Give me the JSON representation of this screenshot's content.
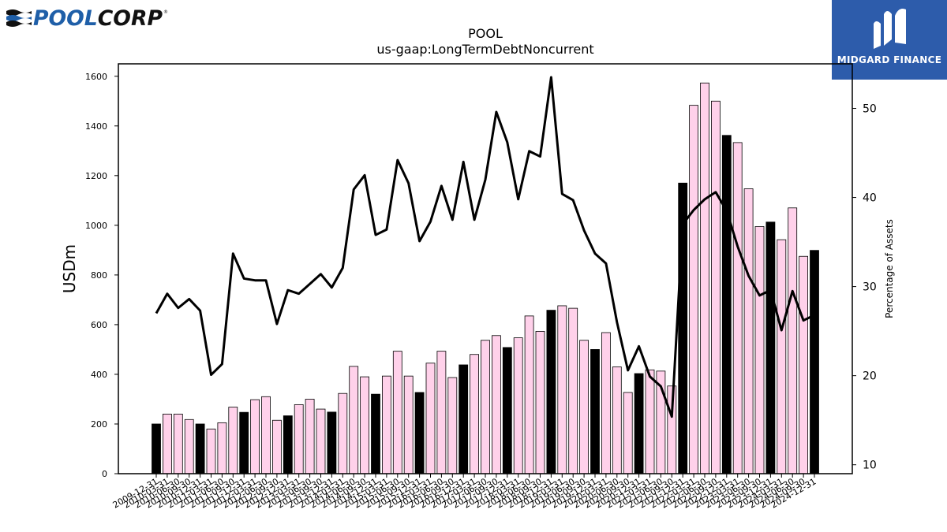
{
  "brand": {
    "left_logo": "POOLCORP",
    "right_logo": "MIDGARD FINANCE",
    "colors": {
      "poolcorp_blue": "#1f5fa8",
      "midgard_bg": "#2d5cab"
    }
  },
  "chart_data": {
    "type": "bar",
    "title": "POOL",
    "subtitle": "us-gaap:LongTermDebtNoncurrent",
    "ylabel": "USDm",
    "ylabel_right": "Percentage of Assets",
    "ylim": [
      0,
      1650
    ],
    "ylim_right": [
      9,
      55
    ],
    "yticks": [
      0,
      200,
      400,
      600,
      800,
      1000,
      1200,
      1400,
      1600
    ],
    "yticks_right": [
      10,
      20,
      30,
      40,
      50
    ],
    "grid": false,
    "categories": [
      "2009-12-31",
      "2010-03-31",
      "2010-06-30",
      "2010-09-30",
      "2010-12-31",
      "2011-03-31",
      "2011-06-30",
      "2011-09-30",
      "2011-12-31",
      "2012-03-31",
      "2012-06-30",
      "2012-09-30",
      "2012-12-31",
      "2013-03-31",
      "2013-06-30",
      "2013-09-30",
      "2013-12-31",
      "2014-03-31",
      "2014-06-30",
      "2014-09-30",
      "2014-12-31",
      "2015-03-31",
      "2015-06-30",
      "2015-09-30",
      "2015-12-31",
      "2016-03-31",
      "2016-06-30",
      "2016-09-30",
      "2016-12-31",
      "2017-03-31",
      "2017-06-30",
      "2017-09-30",
      "2017-12-31",
      "2018-03-31",
      "2018-06-30",
      "2018-09-30",
      "2018-12-31",
      "2019-03-31",
      "2019-06-30",
      "2019-09-30",
      "2019-12-31",
      "2020-03-31",
      "2020-06-30",
      "2020-09-30",
      "2020-12-31",
      "2021-03-31",
      "2021-06-30",
      "2021-09-30",
      "2021-12-31",
      "2022-03-31",
      "2022-06-30",
      "2022-09-30",
      "2022-12-31",
      "2023-03-31",
      "2023-06-30",
      "2023-09-30",
      "2023-12-31",
      "2024-03-31",
      "2024-06-30",
      "2024-09-30",
      "2024-12-31"
    ],
    "series": [
      {
        "type": "bar",
        "values": [
          200,
          240,
          240,
          218,
          200,
          180,
          205,
          268,
          247,
          298,
          310,
          215,
          233,
          278,
          300,
          260,
          248,
          323,
          432,
          390,
          320,
          393,
          493,
          393,
          327,
          445,
          493,
          387,
          438,
          480,
          537,
          556,
          508,
          547,
          635,
          573,
          658,
          676,
          666,
          537,
          500,
          568,
          430,
          327,
          403,
          418,
          413,
          353,
          1170,
          1483,
          1573,
          1500,
          1362,
          1333,
          1147,
          995,
          1013,
          942,
          1070,
          875,
          899
        ],
        "colors": {
          "year_end": "#000000",
          "quarter": "#ffd1ea"
        }
      },
      {
        "type": "line",
        "axis": "right",
        "color": "#000000",
        "values": [
          27,
          29.2,
          27.6,
          28.6,
          27.3,
          20.1,
          21.3,
          33.7,
          30.9,
          30.7,
          30.7,
          25.8,
          29.6,
          29.2,
          30.3,
          31.4,
          29.9,
          32.1,
          40.9,
          42.5,
          35.8,
          36.4,
          44.2,
          41.6,
          35.1,
          37.3,
          41.3,
          37.5,
          44,
          37.5,
          42,
          49.6,
          46.2,
          39.8,
          45.2,
          44.6,
          53.5,
          40.4,
          39.7,
          36.3,
          33.7,
          32.6,
          26,
          20.6,
          23.3,
          19.9,
          18.8,
          15.4,
          37,
          38.6,
          39.8,
          40.6,
          38.5,
          34.5,
          31.2,
          29,
          29.6,
          25.1,
          29.5,
          26.2,
          26.8
        ]
      }
    ]
  }
}
